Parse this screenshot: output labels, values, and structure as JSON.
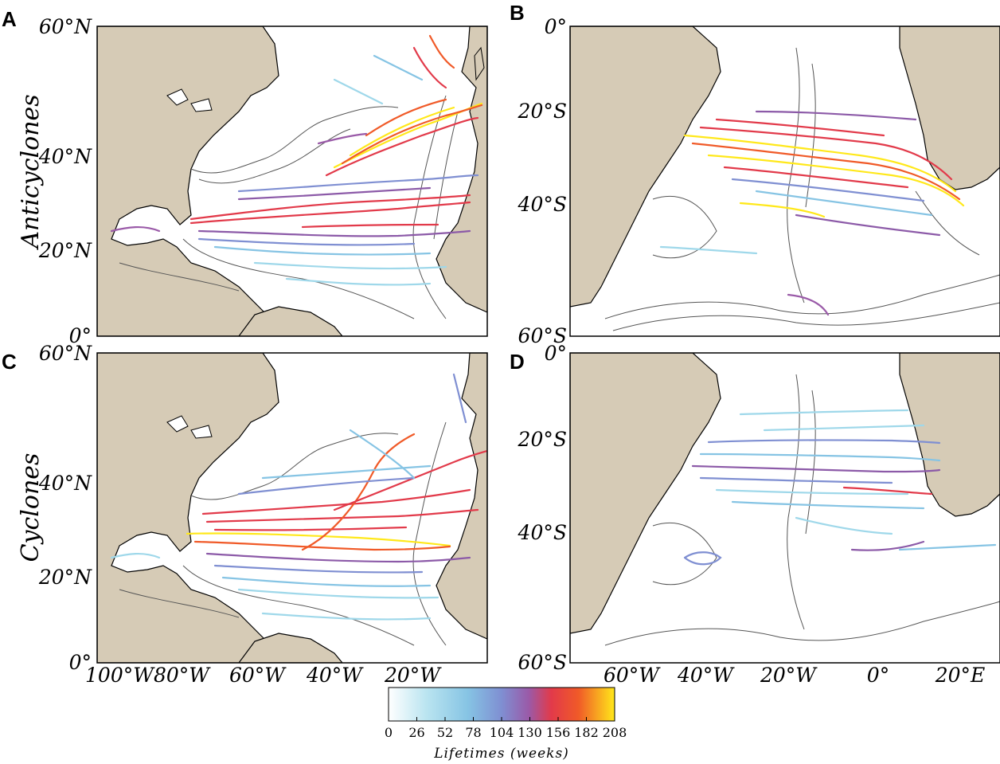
{
  "figure": {
    "panels": [
      {
        "id": "A",
        "label": "A",
        "region": "north",
        "type": "anticyclones",
        "y_ticks": [
          "60°N",
          "40°N",
          "20°N",
          "0°"
        ],
        "x_ticks": []
      },
      {
        "id": "B",
        "label": "B",
        "region": "south",
        "type": "anticyclones",
        "y_ticks": [
          "0°",
          "20°S",
          "40°S",
          "60°S"
        ],
        "x_ticks": []
      },
      {
        "id": "C",
        "label": "C",
        "region": "north",
        "type": "cyclones",
        "y_ticks": [
          "60°N",
          "40°N",
          "20°N",
          "0°"
        ],
        "x_ticks": [
          "100°W",
          "80°W",
          "60°W",
          "40°W",
          "20°W"
        ]
      },
      {
        "id": "D",
        "label": "D",
        "region": "south",
        "type": "cyclones",
        "y_ticks": [
          "0°",
          "20°S",
          "40°S",
          "60°S"
        ],
        "x_ticks": [
          "60°W",
          "40°W",
          "20°W",
          "0°",
          "20°E"
        ]
      }
    ],
    "row_labels": {
      "top": "Anticyclones",
      "bottom": "Cyclones"
    },
    "colorbar": {
      "title": "Lifetimes (weeks)",
      "ticks": [
        "0",
        "26",
        "52",
        "78",
        "104",
        "130",
        "156",
        "182",
        "208"
      ],
      "min": 0,
      "max": 208,
      "colors": [
        "#ffffff",
        "#9fd8ea",
        "#7f8fd2",
        "#8c5aa8",
        "#e23a4a",
        "#f05a28",
        "#ffe81a"
      ]
    },
    "land_color": "#d6cbb6"
  }
}
